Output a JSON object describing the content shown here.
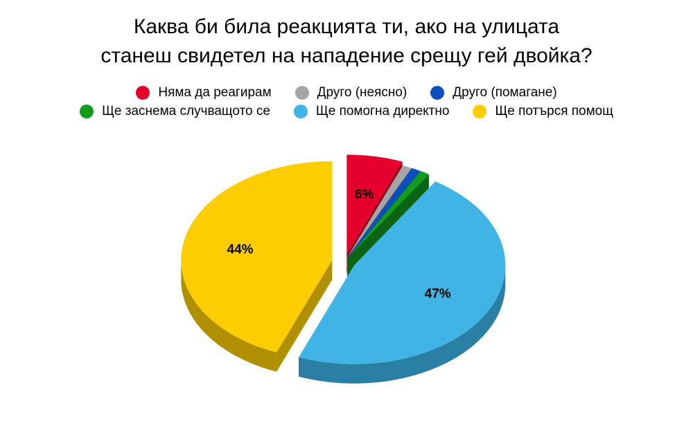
{
  "chart_data": {
    "type": "pie",
    "title_lines": [
      "Каква би била реакцията ти, ако на улицата",
      "станеш свидетел на нападение срещу гей двойка?"
    ],
    "legend_placement": "top",
    "categories": [
      "Няма да реагирам",
      "Друго (неясно)",
      "Друго (помагане)",
      "Ще заснема случващото се",
      "Ще помогна директно",
      "Ще потърся помощ"
    ],
    "values": [
      6,
      1,
      1,
      1,
      47,
      44
    ],
    "data_labels": [
      "6%",
      "",
      "",
      "",
      "47%",
      "44%"
    ],
    "colors": [
      "#e4002b",
      "#a5a5a5",
      "#0a4fbd",
      "#119c1e",
      "#41b4e6",
      "#fccd00"
    ],
    "side_colors": [
      "#930019",
      "#6b6b6b",
      "#05327a",
      "#0a6412",
      "#2a7fa5",
      "#b19000"
    ]
  }
}
